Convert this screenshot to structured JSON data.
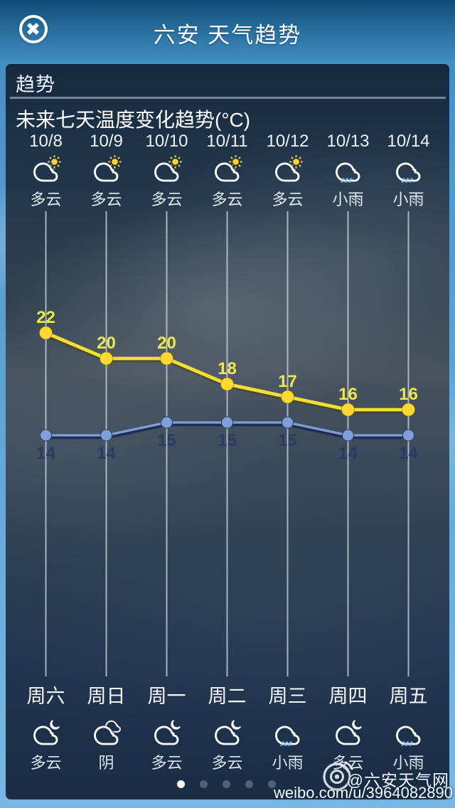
{
  "header": {
    "title": "六安 天气趋势",
    "close_icon": "close-circle-icon"
  },
  "panel": {
    "section_label": "趋势",
    "chart_title": "未来七天温度变化趋势(°C)"
  },
  "columns": [
    {
      "date": "10/8",
      "week": "周六",
      "day": {
        "icon": "cloud-sun",
        "label": "多云"
      },
      "night": {
        "icon": "cloud-moon",
        "label": "多云"
      },
      "high": 22,
      "low": 14
    },
    {
      "date": "10/9",
      "week": "周日",
      "day": {
        "icon": "cloud-sun",
        "label": "多云"
      },
      "night": {
        "icon": "overcast",
        "label": "阴"
      },
      "high": 20,
      "low": 14
    },
    {
      "date": "10/10",
      "week": "周一",
      "day": {
        "icon": "cloud-sun",
        "label": "多云"
      },
      "night": {
        "icon": "cloud-moon",
        "label": "多云"
      },
      "high": 20,
      "low": 15
    },
    {
      "date": "10/11",
      "week": "周二",
      "day": {
        "icon": "cloud-sun",
        "label": "多云"
      },
      "night": {
        "icon": "cloud-moon",
        "label": "多云"
      },
      "high": 18,
      "low": 15
    },
    {
      "date": "10/12",
      "week": "周三",
      "day": {
        "icon": "cloud-sun",
        "label": "多云"
      },
      "night": {
        "icon": "cloud-rain",
        "label": "小雨"
      },
      "high": 17,
      "low": 15
    },
    {
      "date": "10/13",
      "week": "周四",
      "day": {
        "icon": "cloud-rain",
        "label": "小雨"
      },
      "night": {
        "icon": "cloud-moon",
        "label": "多云"
      },
      "high": 16,
      "low": 14
    },
    {
      "date": "10/14",
      "week": "周五",
      "day": {
        "icon": "cloud-rain",
        "label": "小雨"
      },
      "night": {
        "icon": "cloud-rain",
        "label": "小雨"
      },
      "high": 16,
      "low": 14
    }
  ],
  "chart_data": {
    "type": "line",
    "categories": [
      "10/8",
      "10/9",
      "10/10",
      "10/11",
      "10/12",
      "10/13",
      "10/14"
    ],
    "series": [
      {
        "name": "high",
        "values": [
          22,
          20,
          20,
          18,
          17,
          16,
          16
        ],
        "color": "#f6de37"
      },
      {
        "name": "low",
        "values": [
          14,
          14,
          15,
          15,
          15,
          14,
          14
        ],
        "color": "#7fa0d6"
      }
    ],
    "unit": "°C",
    "title": "未来七天温度变化趋势(°C)",
    "grid": "vertical-lines",
    "ylim": [
      13,
      23
    ]
  },
  "pagination": {
    "count": 5,
    "active": 0
  },
  "watermark": {
    "logo": "weibo-eye-icon",
    "handle": "@六安天气网",
    "url": "weibo.com/u/3964082890"
  },
  "colors": {
    "accent_high_line": "#f6de37",
    "accent_high_dot": "#ffd930",
    "accent_high_label": "#ece64f",
    "accent_low_line": "#7fa0d6",
    "accent_low_shadow": "#1f2e52",
    "accent_low_label": "#2b3b63",
    "gridline": "#c7d1d9",
    "sun": "#ffd22e",
    "rain_dot": "#7db3e8",
    "active_dot": "#ffffff"
  }
}
